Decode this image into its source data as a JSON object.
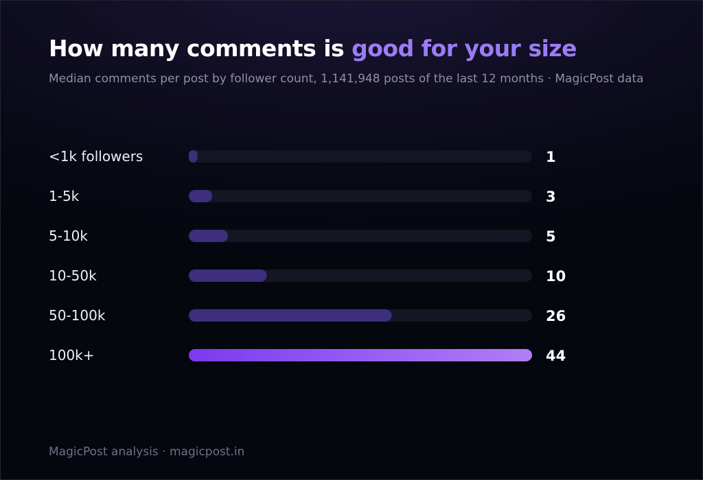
{
  "header": {
    "title_main": "How many comments is ",
    "title_accent": "good for your size",
    "subtitle": "Median comments per post by follower count, 1,141,948 posts of the last 12 months · MagicPost data"
  },
  "footer": {
    "text": "MagicPost analysis · magicpost.in"
  },
  "colors": {
    "accent": "#9b7cf4",
    "bar_muted": "#3e2f7c",
    "bar_track": "#141624",
    "bar_highlight_start": "#7b3aee",
    "bar_highlight_end": "#b07ef7"
  },
  "chart_data": {
    "type": "bar",
    "orientation": "horizontal",
    "title": "How many comments is good for your size",
    "categories": [
      "<1k followers",
      "1-5k",
      "5-10k",
      "10-50k",
      "50-100k",
      "100k+"
    ],
    "values": [
      1,
      3,
      5,
      10,
      26,
      44
    ],
    "value_labels": [
      "1",
      "3",
      "5",
      "10",
      "26",
      "44"
    ],
    "xlim": [
      0,
      44
    ],
    "grid": false,
    "legend": "none",
    "highlight_index": 5
  }
}
